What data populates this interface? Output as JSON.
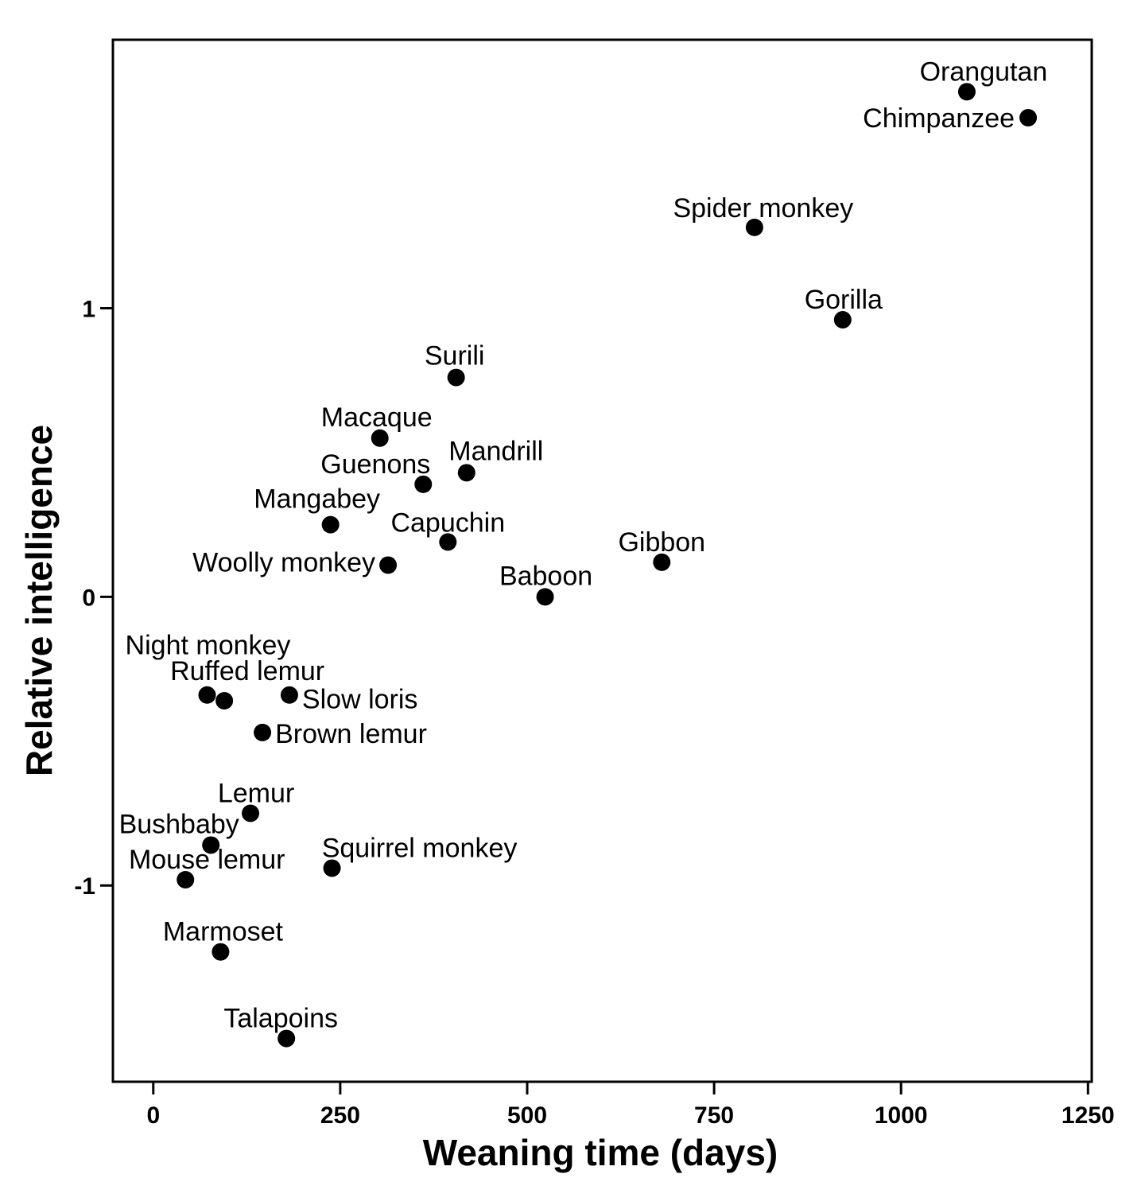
{
  "chart_data": {
    "type": "scatter",
    "title": "",
    "xlabel": "Weaning time (days)",
    "ylabel": "Relative intelligence",
    "xlim": [
      -54,
      1255
    ],
    "ylim": [
      -1.68,
      1.93
    ],
    "xticks": [
      0,
      250,
      500,
      750,
      1000,
      1250
    ],
    "yticks": [
      -1,
      0,
      1
    ],
    "xtick_labels": [
      "0",
      "250",
      "500",
      "750",
      "1000",
      "1250"
    ],
    "ytick_labels": [
      "-1",
      "0",
      "1"
    ],
    "grid": false,
    "marker_color": "#000000",
    "points": [
      {
        "label": "Orangutan",
        "x": 1088,
        "y": 1.75
      },
      {
        "label": "Chimpanzee",
        "x": 1170,
        "y": 1.66
      },
      {
        "label": "Spider monkey",
        "x": 804,
        "y": 1.28
      },
      {
        "label": "Gorilla",
        "x": 922,
        "y": 0.96
      },
      {
        "label": "Surili",
        "x": 405,
        "y": 0.76
      },
      {
        "label": "Macaque",
        "x": 303,
        "y": 0.55
      },
      {
        "label": "Mandrill",
        "x": 419,
        "y": 0.43
      },
      {
        "label": "Guenons",
        "x": 361,
        "y": 0.39
      },
      {
        "label": "Mangabey",
        "x": 237,
        "y": 0.25
      },
      {
        "label": "Capuchin",
        "x": 394,
        "y": 0.19
      },
      {
        "label": "Woolly monkey",
        "x": 314,
        "y": 0.11
      },
      {
        "label": "Gibbon",
        "x": 680,
        "y": 0.12
      },
      {
        "label": "Baboon",
        "x": 524,
        "y": 0.0
      },
      {
        "label": "Night monkey",
        "x": 72,
        "y": -0.34
      },
      {
        "label": "Ruffed lemur",
        "x": 95,
        "y": -0.36
      },
      {
        "label": "Slow loris",
        "x": 182,
        "y": -0.34
      },
      {
        "label": "Brown lemur",
        "x": 146,
        "y": -0.47
      },
      {
        "label": "Lemur",
        "x": 130,
        "y": -0.75
      },
      {
        "label": "Bushbaby",
        "x": 77,
        "y": -0.86
      },
      {
        "label": "Mouse lemur",
        "x": 43,
        "y": -0.98
      },
      {
        "label": "Squirrel monkey",
        "x": 239,
        "y": -0.94
      },
      {
        "label": "Marmoset",
        "x": 90,
        "y": -1.23
      },
      {
        "label": "Talapoins",
        "x": 178,
        "y": -1.53
      }
    ]
  }
}
